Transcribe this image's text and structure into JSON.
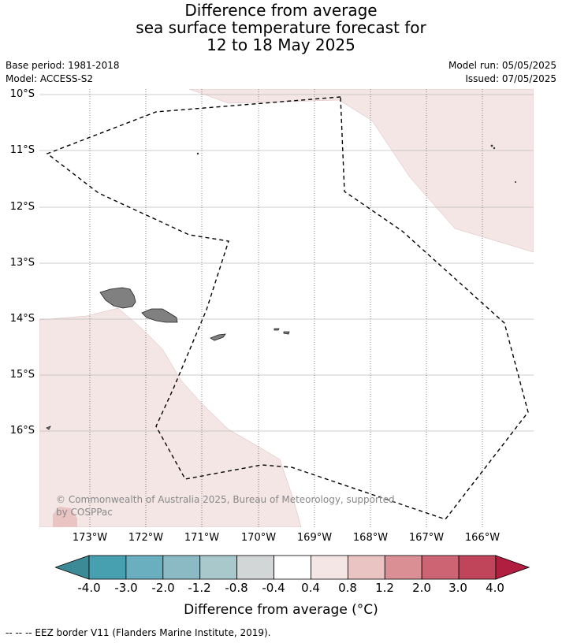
{
  "title": {
    "line1": "Difference from average",
    "line2": "sea surface temperature forecast for",
    "line3": "12 to 18 May 2025"
  },
  "meta": {
    "base_period": "Base period: 1981-2018",
    "model": "Model: ACCESS-S2",
    "model_run": "Model run: 05/05/2025",
    "issued": "Issued: 07/05/2025"
  },
  "map": {
    "lat_labels": [
      "10°S",
      "11°S",
      "12°S",
      "13°S",
      "14°S",
      "15°S",
      "16°S"
    ],
    "lon_labels": [
      "173°W",
      "172°W",
      "171°W",
      "170°W",
      "169°W",
      "168°W",
      "167°W",
      "166°W"
    ],
    "land_color": "#808080",
    "anomaly_fill_color": "#f5e6e6",
    "copyright": "© Commonwealth of Australia 2025, Bureau of Meteorology, supported by COSPPac"
  },
  "colorbar": {
    "title": "Difference from average (°C)",
    "ticks": [
      "-4.0",
      "-3.0",
      "-2.0",
      "-1.2",
      "-0.8",
      "-0.4",
      "0.4",
      "0.8",
      "1.2",
      "2.0",
      "3.0",
      "4.0"
    ],
    "colors": [
      "#46a0b0",
      "#6aafbf",
      "#8cbac4",
      "#a9c8cc",
      "#d3d6d6",
      "#ffffff",
      "#f5e6e6",
      "#e9c4c3",
      "#da8f95",
      "#cc6473",
      "#c0445a"
    ],
    "low_extension_color": "#3c8a96",
    "high_extension_color": "#b01f3f"
  },
  "footer": {
    "legend": "--  --  -- EEZ border V11 (Flanders Marine Institute, 2019)."
  }
}
